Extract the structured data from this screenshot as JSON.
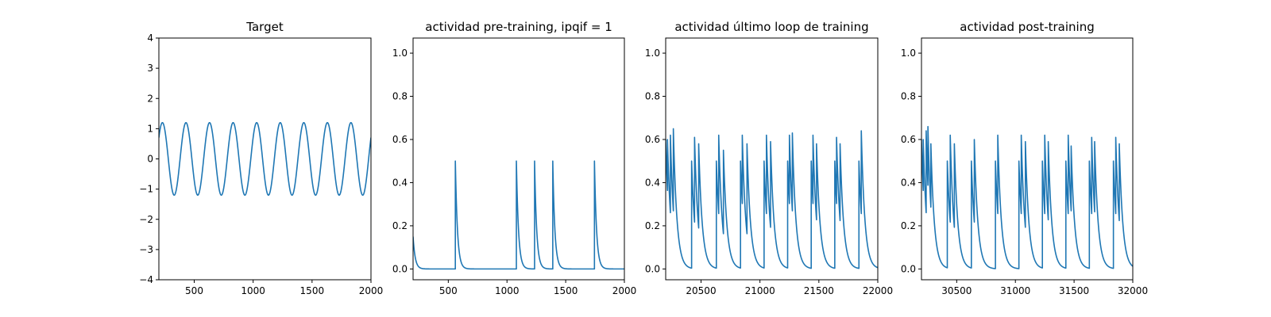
{
  "chart_data": [
    {
      "type": "line",
      "title": "Target",
      "xlim": [
        200,
        2000
      ],
      "ylim": [
        -4,
        4
      ],
      "xticks": [
        500,
        1000,
        1500,
        2000
      ],
      "yticks": [
        -4,
        -3,
        -2,
        -1,
        0,
        1,
        2,
        3,
        4
      ],
      "signal": {
        "kind": "sine",
        "amplitude": 1.2,
        "period": 200,
        "peak_at": 230
      },
      "series": [
        {
          "color": "#1f77b4"
        }
      ]
    },
    {
      "type": "line",
      "title": "actividad pre-training, ipqif = 1",
      "xlim": [
        200,
        2000
      ],
      "ylim": [
        -0.05,
        1.07
      ],
      "xticks": [
        500,
        1000,
        1500,
        2000
      ],
      "yticks": [
        0.0,
        0.2,
        0.4,
        0.6,
        0.8,
        1.0
      ],
      "signal": {
        "kind": "spikes",
        "baseline": 0.0,
        "decay": 18,
        "initial_value": 0.15,
        "spikes": [
          [
            560,
            0.5
          ],
          [
            1080,
            0.5
          ],
          [
            1235,
            0.5
          ],
          [
            1390,
            0.5
          ],
          [
            1745,
            0.5
          ]
        ]
      },
      "series": [
        {
          "color": "#1f77b4"
        }
      ]
    },
    {
      "type": "line",
      "title": "actividad último loop de training",
      "xlim": [
        20200,
        22000
      ],
      "ylim": [
        -0.05,
        1.07
      ],
      "xticks": [
        20500,
        21000,
        21500,
        22000
      ],
      "yticks": [
        0.0,
        0.2,
        0.4,
        0.6,
        0.8,
        1.0
      ],
      "signal": {
        "kind": "spikes",
        "baseline": 0.0,
        "decay": 30,
        "initial_value": 0.6,
        "spikes": [
          [
            20215,
            0.6
          ],
          [
            20240,
            0.62
          ],
          [
            20265,
            0.65
          ],
          [
            20420,
            0.5
          ],
          [
            20445,
            0.61
          ],
          [
            20480,
            0.58
          ],
          [
            20630,
            0.5
          ],
          [
            20650,
            0.62
          ],
          [
            20690,
            0.55
          ],
          [
            20835,
            0.5
          ],
          [
            20850,
            0.62
          ],
          [
            20890,
            0.58
          ],
          [
            21035,
            0.5
          ],
          [
            21055,
            0.62
          ],
          [
            21090,
            0.59
          ],
          [
            21235,
            0.5
          ],
          [
            21250,
            0.62
          ],
          [
            21275,
            0.63
          ],
          [
            21435,
            0.5
          ],
          [
            21450,
            0.62
          ],
          [
            21480,
            0.58
          ],
          [
            21635,
            0.5
          ],
          [
            21650,
            0.61
          ],
          [
            21680,
            0.58
          ],
          [
            21840,
            0.5
          ],
          [
            21860,
            0.64
          ]
        ]
      },
      "series": [
        {
          "color": "#1f77b4"
        }
      ]
    },
    {
      "type": "line",
      "title": "actividad post-training",
      "xlim": [
        30200,
        32000
      ],
      "ylim": [
        -0.05,
        1.07
      ],
      "xticks": [
        30500,
        31000,
        31500,
        32000
      ],
      "yticks": [
        0.0,
        0.2,
        0.4,
        0.6,
        0.8,
        1.0
      ],
      "signal": {
        "kind": "spikes",
        "baseline": 0.0,
        "decay": 30,
        "initial_value": 0.6,
        "spikes": [
          [
            30215,
            0.6
          ],
          [
            30240,
            0.64
          ],
          [
            30255,
            0.66
          ],
          [
            30280,
            0.58
          ],
          [
            30420,
            0.5
          ],
          [
            30445,
            0.62
          ],
          [
            30480,
            0.58
          ],
          [
            30625,
            0.5
          ],
          [
            30650,
            0.6
          ],
          [
            30830,
            0.5
          ],
          [
            30850,
            0.62
          ],
          [
            31030,
            0.5
          ],
          [
            31050,
            0.62
          ],
          [
            31085,
            0.59
          ],
          [
            31230,
            0.5
          ],
          [
            31250,
            0.62
          ],
          [
            31280,
            0.59
          ],
          [
            31430,
            0.5
          ],
          [
            31450,
            0.62
          ],
          [
            31475,
            0.57
          ],
          [
            31630,
            0.5
          ],
          [
            31650,
            0.61
          ],
          [
            31675,
            0.59
          ],
          [
            31835,
            0.5
          ],
          [
            31855,
            0.61
          ],
          [
            31885,
            0.58
          ]
        ]
      },
      "series": [
        {
          "color": "#1f77b4"
        }
      ]
    }
  ]
}
